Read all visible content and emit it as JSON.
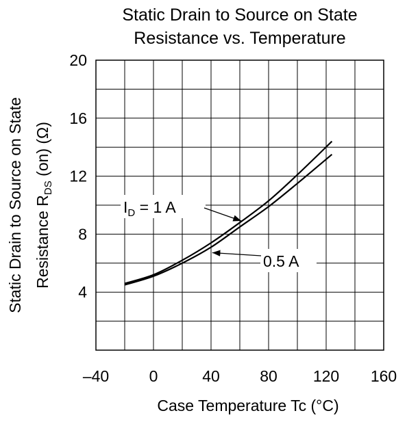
{
  "chart_data": {
    "type": "line",
    "title_lines": [
      "Static Drain to Source on State",
      "Resistance vs. Temperature"
    ],
    "xlabel": "Case Temperature Tc  (°C)",
    "ylabel": {
      "line1": "Static Drain to Source on State",
      "line2_pre": "Resistance R",
      "line2_sub": "DS",
      "line2_post": " (on)  (Ω)"
    },
    "xlim": [
      -40,
      160
    ],
    "ylim": [
      0,
      20
    ],
    "x_major_step": 20,
    "y_major_step": 2,
    "x_tick_labels": [
      "–40",
      "0",
      "40",
      "80",
      "120",
      "160"
    ],
    "x_tick_values": [
      -40,
      0,
      40,
      80,
      120,
      160
    ],
    "y_tick_labels": [
      "20",
      "16",
      "12",
      "8",
      "4"
    ],
    "y_tick_values": [
      20,
      16,
      12,
      8,
      4
    ],
    "grid": true,
    "series": [
      {
        "name": "I_D = 1 A",
        "label_main": "I",
        "label_sub": "D",
        "label_post": " = 1 A",
        "arrow_to": [
          60,
          9.2
        ],
        "x": [
          -20,
          0,
          20,
          40,
          60,
          80,
          100,
          124
        ],
        "y": [
          4.6,
          5.2,
          6.2,
          7.4,
          8.8,
          10.3,
          12.1,
          14.4
        ]
      },
      {
        "name": "0.5 A",
        "label": "0.5 A",
        "arrow_to": [
          38,
          7.1
        ],
        "x": [
          -20,
          0,
          20,
          40,
          60,
          80,
          100,
          124
        ],
        "y": [
          4.5,
          5.1,
          6.0,
          7.1,
          8.5,
          9.9,
          11.5,
          13.5
        ]
      }
    ]
  }
}
